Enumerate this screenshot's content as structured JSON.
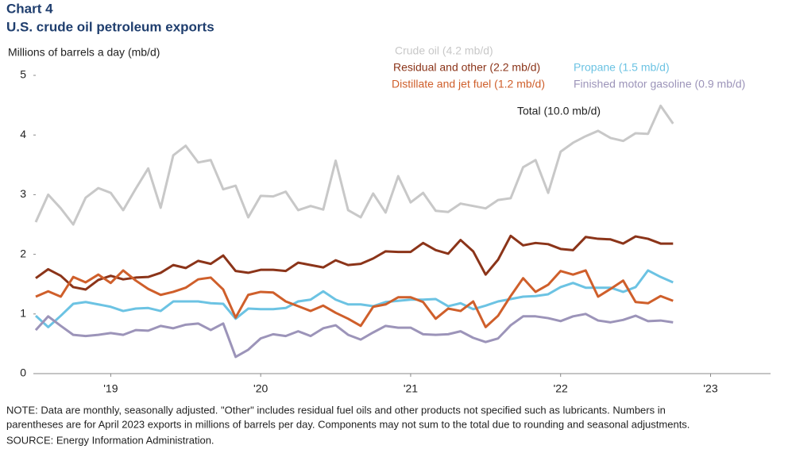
{
  "chart_data": {
    "type": "line",
    "title": "Chart 4",
    "subtitle": "U.S. crude oil petroleum exports",
    "y_label": "Millions of barrels a day (mb/d)",
    "annotation": "Total (10.0 mb/d)",
    "note_lines": [
      "NOTE: Data are monthly, seasonally adjusted. \"Other\" includes residual fuel oils and other products not specified such as lubricants. Numbers in",
      "parentheses are for April 2023 exports in millions of barrels per day. Components may not sum to the total due to rounding and seasonal adjustments."
    ],
    "source": "SOURCE: Energy Information Administration.",
    "xlim": [
      2019,
      2023.9
    ],
    "xticks": [
      {
        "value": 2019.5,
        "label": "'19"
      },
      {
        "value": 2020.5,
        "label": "'20"
      },
      {
        "value": 2021.5,
        "label": "'21"
      },
      {
        "value": 2022.5,
        "label": "'22"
      },
      {
        "value": 2023.5,
        "label": "'23"
      }
    ],
    "ylim": [
      0,
      5
    ],
    "yticks": [
      0,
      1,
      2,
      3,
      4,
      5
    ],
    "grid": false,
    "x": [
      2019,
      2019.083,
      2019.167,
      2019.25,
      2019.333,
      2019.417,
      2019.5,
      2019.583,
      2019.667,
      2019.75,
      2019.833,
      2019.917,
      2020,
      2020.083,
      2020.167,
      2020.25,
      2020.333,
      2020.417,
      2020.5,
      2020.583,
      2020.667,
      2020.75,
      2020.833,
      2020.917,
      2021,
      2021.083,
      2021.167,
      2021.25,
      2021.333,
      2021.417,
      2021.5,
      2021.583,
      2021.667,
      2021.75,
      2021.833,
      2021.917,
      2022,
      2022.083,
      2022.167,
      2022.25,
      2022.333,
      2022.417,
      2022.5,
      2022.583,
      2022.667,
      2022.75,
      2022.833,
      2022.917,
      2023,
      2023.083,
      2023.167,
      2023.25
    ],
    "series": [
      {
        "name": "Crude oil (4.2 mb/d)",
        "color": "#c8c8c8",
        "values": [
          2.54,
          3.0,
          2.77,
          2.5,
          2.95,
          3.11,
          3.03,
          2.74,
          3.1,
          3.44,
          2.78,
          3.66,
          3.82,
          3.54,
          3.58,
          3.09,
          3.15,
          2.62,
          2.98,
          2.97,
          3.05,
          2.74,
          2.81,
          2.75,
          3.57,
          2.74,
          2.62,
          3.02,
          2.7,
          3.31,
          2.87,
          3.03,
          2.73,
          2.71,
          2.85,
          2.81,
          2.77,
          2.91,
          2.94,
          3.46,
          3.58,
          3.03,
          3.72,
          3.87,
          3.98,
          4.07,
          3.95,
          3.9,
          4.03,
          4.02,
          4.49,
          4.19
        ]
      },
      {
        "name": "Residual and other (2.2 mb/d)",
        "color": "#8b3419",
        "values": [
          1.6,
          1.75,
          1.64,
          1.45,
          1.41,
          1.57,
          1.64,
          1.58,
          1.61,
          1.62,
          1.69,
          1.82,
          1.77,
          1.89,
          1.84,
          1.98,
          1.72,
          1.69,
          1.74,
          1.74,
          1.72,
          1.86,
          1.82,
          1.78,
          1.9,
          1.82,
          1.84,
          1.93,
          2.05,
          2.04,
          2.04,
          2.19,
          2.07,
          2.01,
          2.24,
          2.05,
          1.66,
          1.91,
          2.31,
          2.15,
          2.19,
          2.17,
          2.09,
          2.07,
          2.29,
          2.26,
          2.25,
          2.18,
          2.3,
          2.26,
          2.18,
          2.18
        ]
      },
      {
        "name": "Propane (1.5 mb/d)",
        "color": "#6cc3e3",
        "values": [
          0.97,
          0.78,
          0.97,
          1.17,
          1.2,
          1.16,
          1.12,
          1.05,
          1.09,
          1.1,
          1.05,
          1.21,
          1.21,
          1.21,
          1.18,
          1.17,
          0.92,
          1.09,
          1.08,
          1.08,
          1.1,
          1.21,
          1.24,
          1.38,
          1.24,
          1.16,
          1.16,
          1.13,
          1.2,
          1.22,
          1.24,
          1.24,
          1.25,
          1.13,
          1.18,
          1.08,
          1.14,
          1.21,
          1.25,
          1.29,
          1.3,
          1.33,
          1.45,
          1.52,
          1.44,
          1.44,
          1.44,
          1.37,
          1.45,
          1.73,
          1.62,
          1.53
        ]
      },
      {
        "name": "Distillate and jet fuel (1.2 mb/d)",
        "color": "#cf5f2b",
        "values": [
          1.29,
          1.38,
          1.29,
          1.62,
          1.53,
          1.66,
          1.52,
          1.73,
          1.56,
          1.42,
          1.32,
          1.37,
          1.44,
          1.58,
          1.61,
          1.41,
          0.94,
          1.32,
          1.37,
          1.36,
          1.21,
          1.13,
          1.05,
          1.14,
          1.02,
          0.92,
          0.8,
          1.12,
          1.16,
          1.28,
          1.28,
          1.2,
          0.92,
          1.09,
          1.05,
          1.21,
          0.78,
          0.97,
          1.3,
          1.6,
          1.37,
          1.49,
          1.72,
          1.66,
          1.73,
          1.29,
          1.42,
          1.56,
          1.2,
          1.18,
          1.3,
          1.22
        ]
      },
      {
        "name": "Finished motor gasoline (0.9 mb/d)",
        "color": "#9c94b9",
        "values": [
          0.73,
          0.96,
          0.8,
          0.65,
          0.63,
          0.65,
          0.68,
          0.65,
          0.73,
          0.72,
          0.8,
          0.76,
          0.82,
          0.84,
          0.73,
          0.84,
          0.28,
          0.4,
          0.59,
          0.66,
          0.63,
          0.71,
          0.63,
          0.76,
          0.81,
          0.65,
          0.57,
          0.69,
          0.8,
          0.77,
          0.77,
          0.66,
          0.65,
          0.66,
          0.71,
          0.6,
          0.53,
          0.59,
          0.81,
          0.96,
          0.96,
          0.93,
          0.88,
          0.96,
          1.0,
          0.89,
          0.86,
          0.9,
          0.97,
          0.88,
          0.89,
          0.86
        ]
      }
    ]
  }
}
